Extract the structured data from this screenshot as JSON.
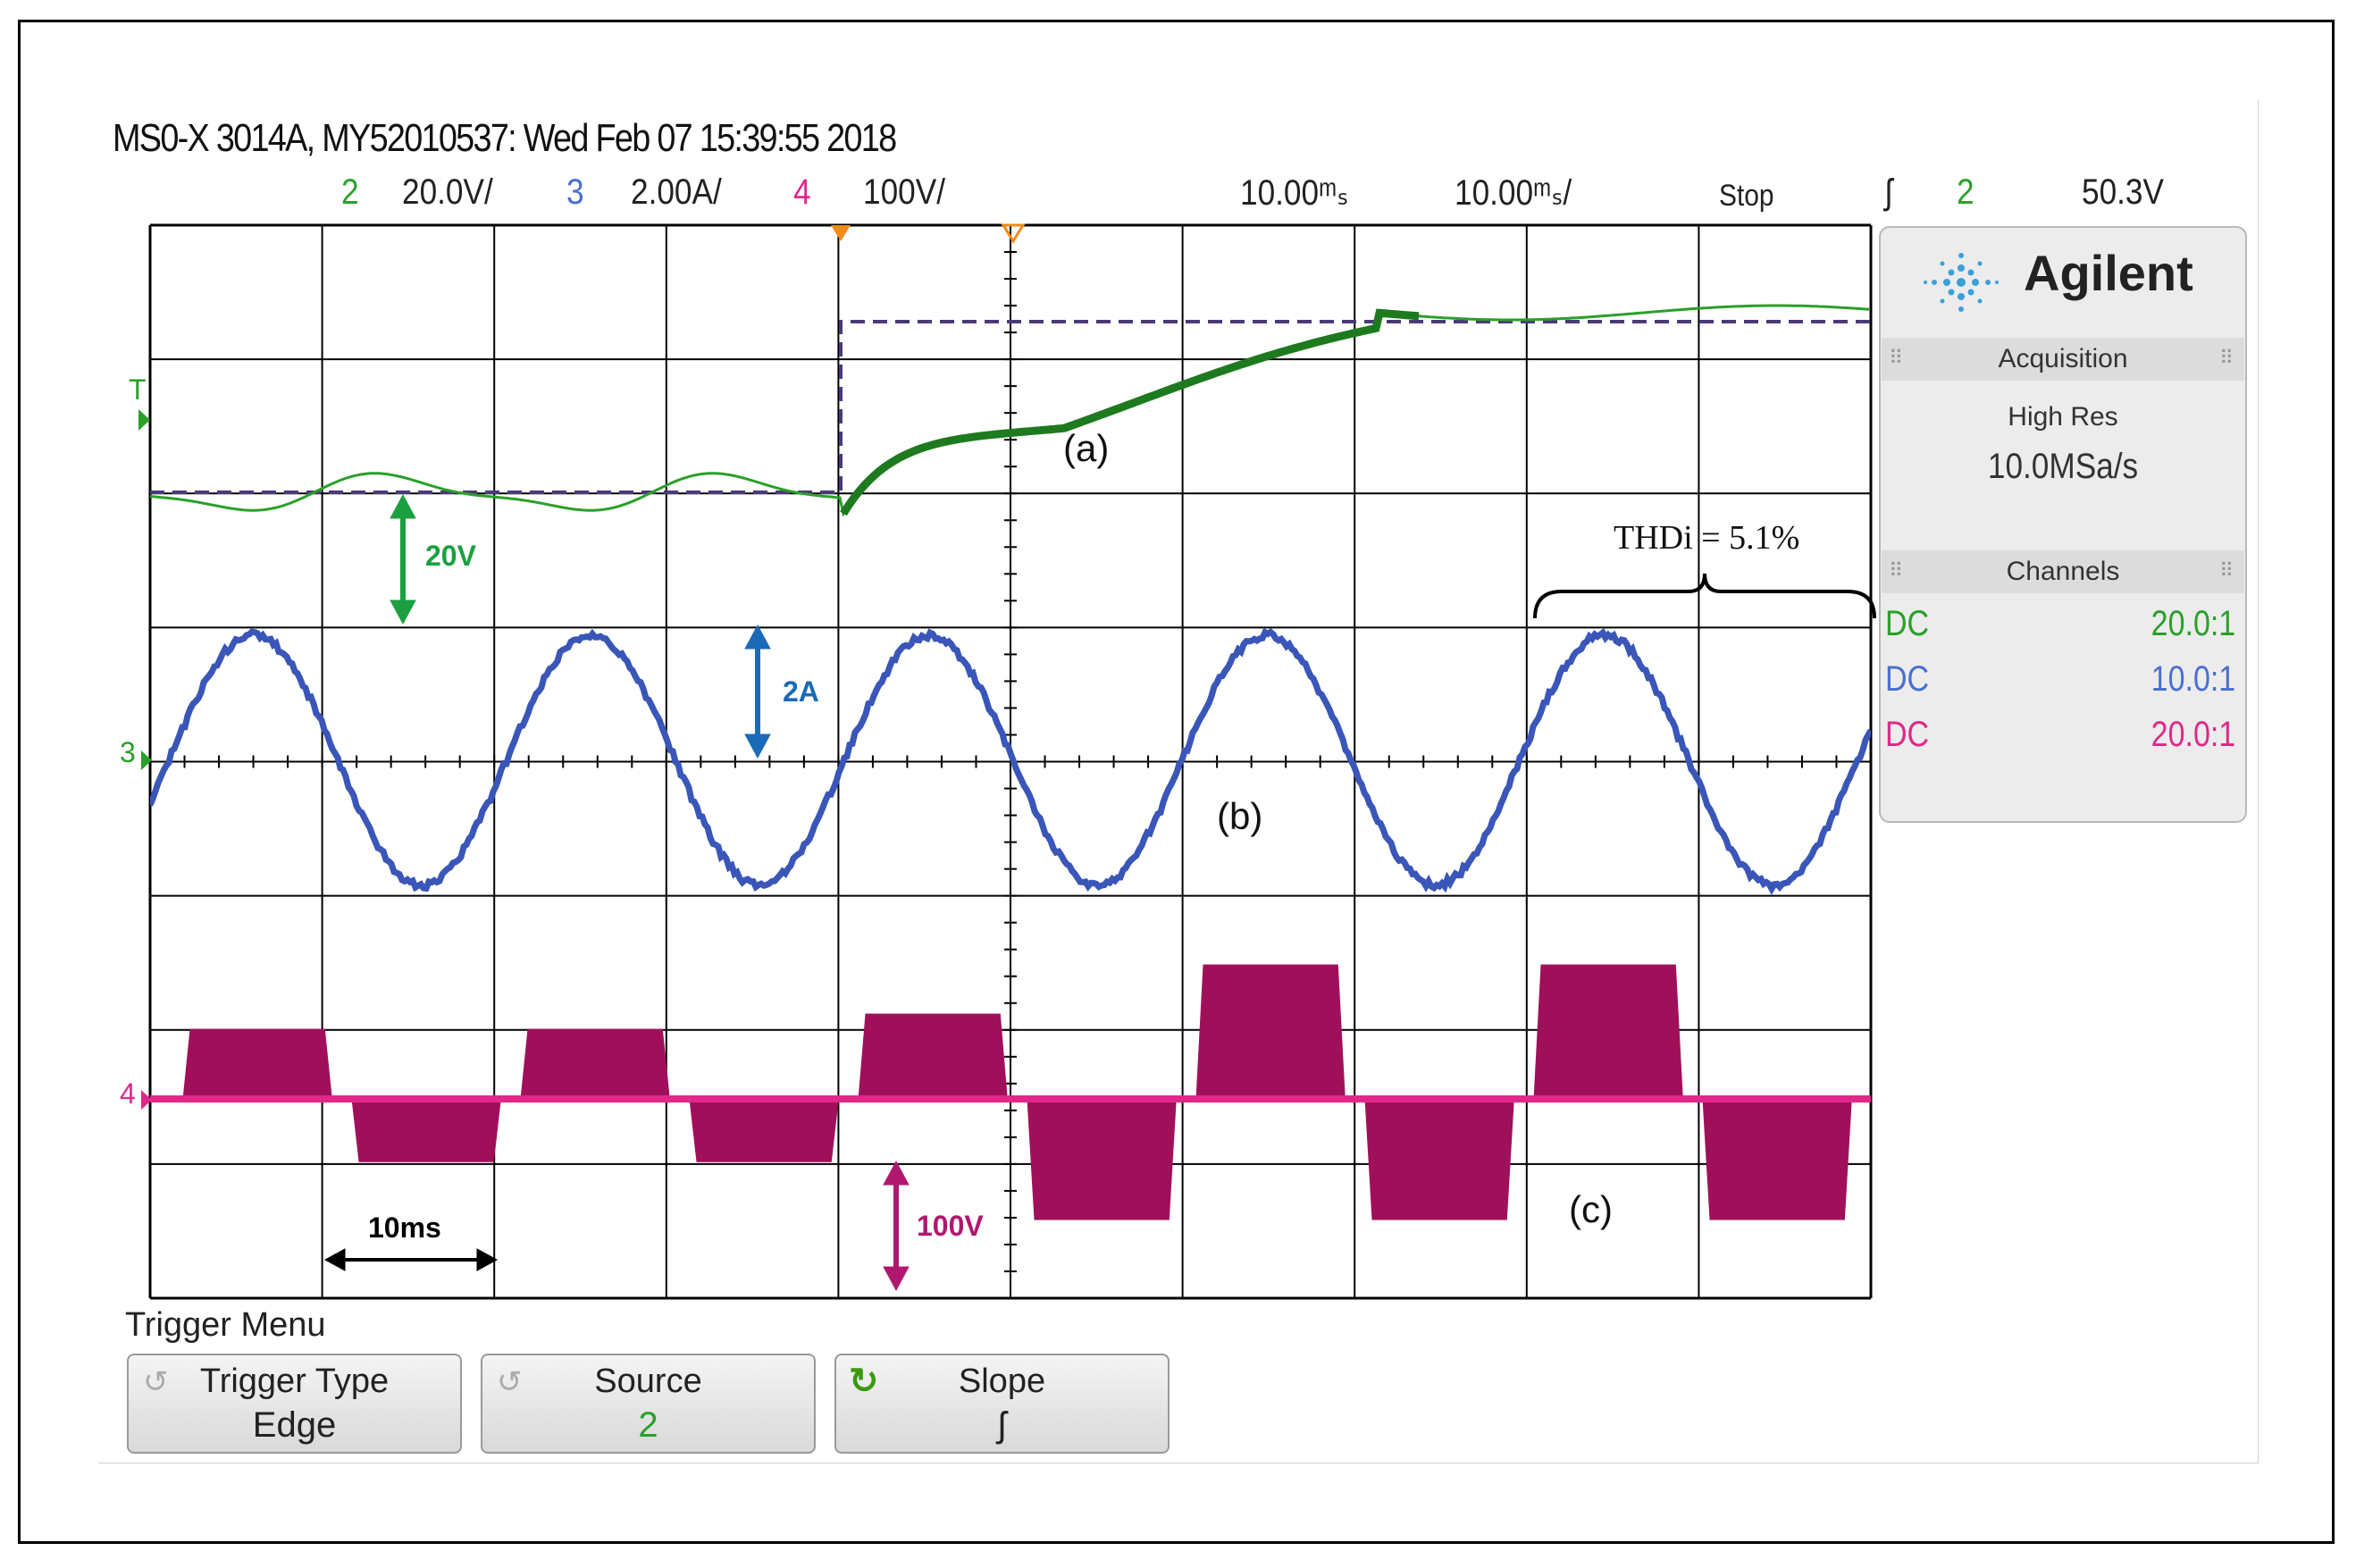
{
  "header": {
    "title": "MS0-X 3014A, MY52010537: Wed Feb 07 15:39:55 2018",
    "ch2_num": "2",
    "ch2_scale": "20.0V/",
    "ch3_num": "3",
    "ch3_scale": "2.00A/",
    "ch4_num": "4",
    "ch4_scale": "100V/",
    "time_delay": "10.00ᵐₛ",
    "time_scale": "10.00ᵐₛ/",
    "run_state": "Stop",
    "trigger_slope_symbol": "ʃ",
    "trigger_source": "2",
    "trigger_level": "50.3V"
  },
  "side_panel": {
    "brand": "Agilent",
    "acquisition": {
      "heading": "Acquisition",
      "mode": "High Res",
      "rate": "10.0MSa/s"
    },
    "channels": {
      "heading": "Channels",
      "rows": [
        {
          "coupling": "DC",
          "probe": "20.0:1",
          "color": "#2aa02a"
        },
        {
          "coupling": "DC",
          "probe": "10.0:1",
          "color": "#4a6fd0"
        },
        {
          "coupling": "DC",
          "probe": "20.0:1",
          "color": "#e0288a"
        }
      ]
    }
  },
  "markers": {
    "trigger": "T",
    "ch3": "3",
    "ch4": "4"
  },
  "annotations": {
    "a": "(a)",
    "b": "(b)",
    "c": "(c)",
    "v20": "20V",
    "a2": "2A",
    "v100": "100V",
    "ms10": "10ms",
    "thd": "THDi = 5.1%"
  },
  "trigger_menu": {
    "title": "Trigger Menu",
    "softkeys": [
      {
        "label": "Trigger Type",
        "value": "Edge"
      },
      {
        "label": "Source",
        "value": "2"
      },
      {
        "label": "Slope",
        "value": "ʃ"
      }
    ]
  },
  "colors": {
    "ch2": "#2aa02a",
    "ch3": "#3a56b8",
    "ch4": "#a0105a",
    "reference": "#4a3a78",
    "grid": "#000000"
  },
  "signals": {
    "reference_dc_voltage_step": "step",
    "ch2_dc_bus_voltage": "trace",
    "ch3_current": "sinusoid",
    "ch4_inverter_voltage": "pwm"
  }
}
